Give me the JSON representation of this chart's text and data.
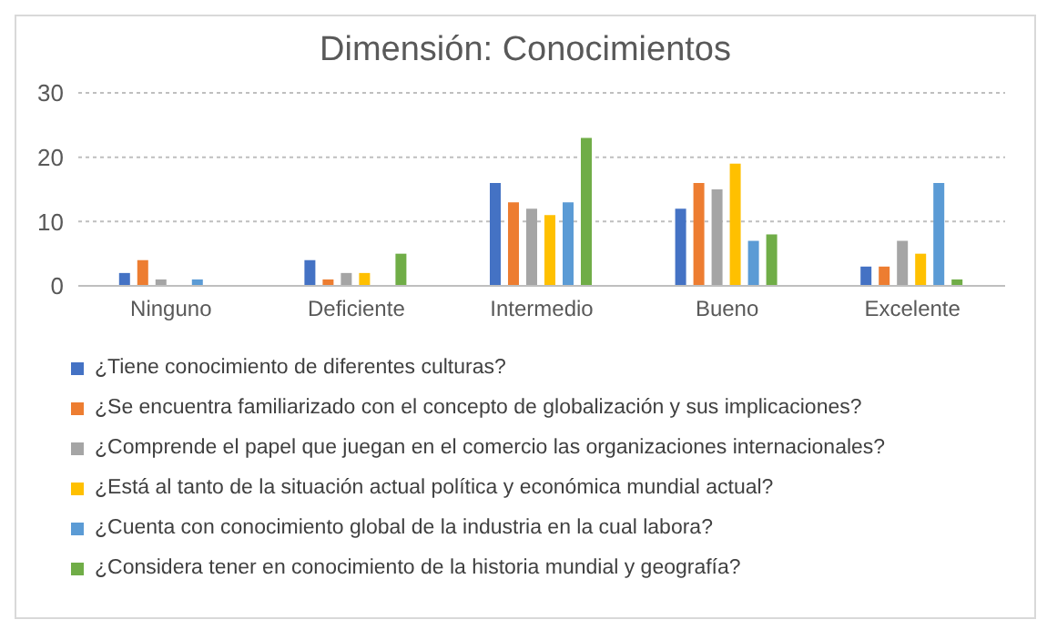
{
  "chart_data": {
    "type": "bar",
    "title": "Dimensión: Conocimientos",
    "categories": [
      "Ninguno",
      "Deficiente",
      "Intermedio",
      "Bueno",
      "Excelente"
    ],
    "series": [
      {
        "name": "¿Tiene conocimiento de diferentes culturas?",
        "color": "#4472c4",
        "values": [
          2,
          4,
          16,
          12,
          3
        ]
      },
      {
        "name": "¿Se encuentra familiarizado con el concepto de globalización y sus implicaciones?",
        "color": "#ed7d31",
        "values": [
          4,
          1,
          13,
          16,
          3
        ]
      },
      {
        "name": "¿Comprende el papel que juegan en el comercio las organizaciones internacionales?",
        "color": "#a5a5a5",
        "values": [
          1,
          2,
          12,
          15,
          7
        ]
      },
      {
        "name": "¿Está al tanto de la situación actual política y económica mundial actual?",
        "color": "#ffc000",
        "values": [
          0,
          2,
          11,
          19,
          5
        ]
      },
      {
        "name": "¿Cuenta con conocimiento global de la industria en la cual labora?",
        "color": "#5b9bd5",
        "values": [
          1,
          0,
          13,
          7,
          16
        ]
      },
      {
        "name": "¿Considera tener en conocimiento de la historia mundial y geografía?",
        "color": "#70ad47",
        "values": [
          0,
          5,
          23,
          8,
          1
        ]
      }
    ],
    "ylim": [
      0,
      30
    ],
    "yticks": [
      0,
      10,
      20,
      30
    ],
    "grid": "y",
    "legend": "bottom"
  }
}
